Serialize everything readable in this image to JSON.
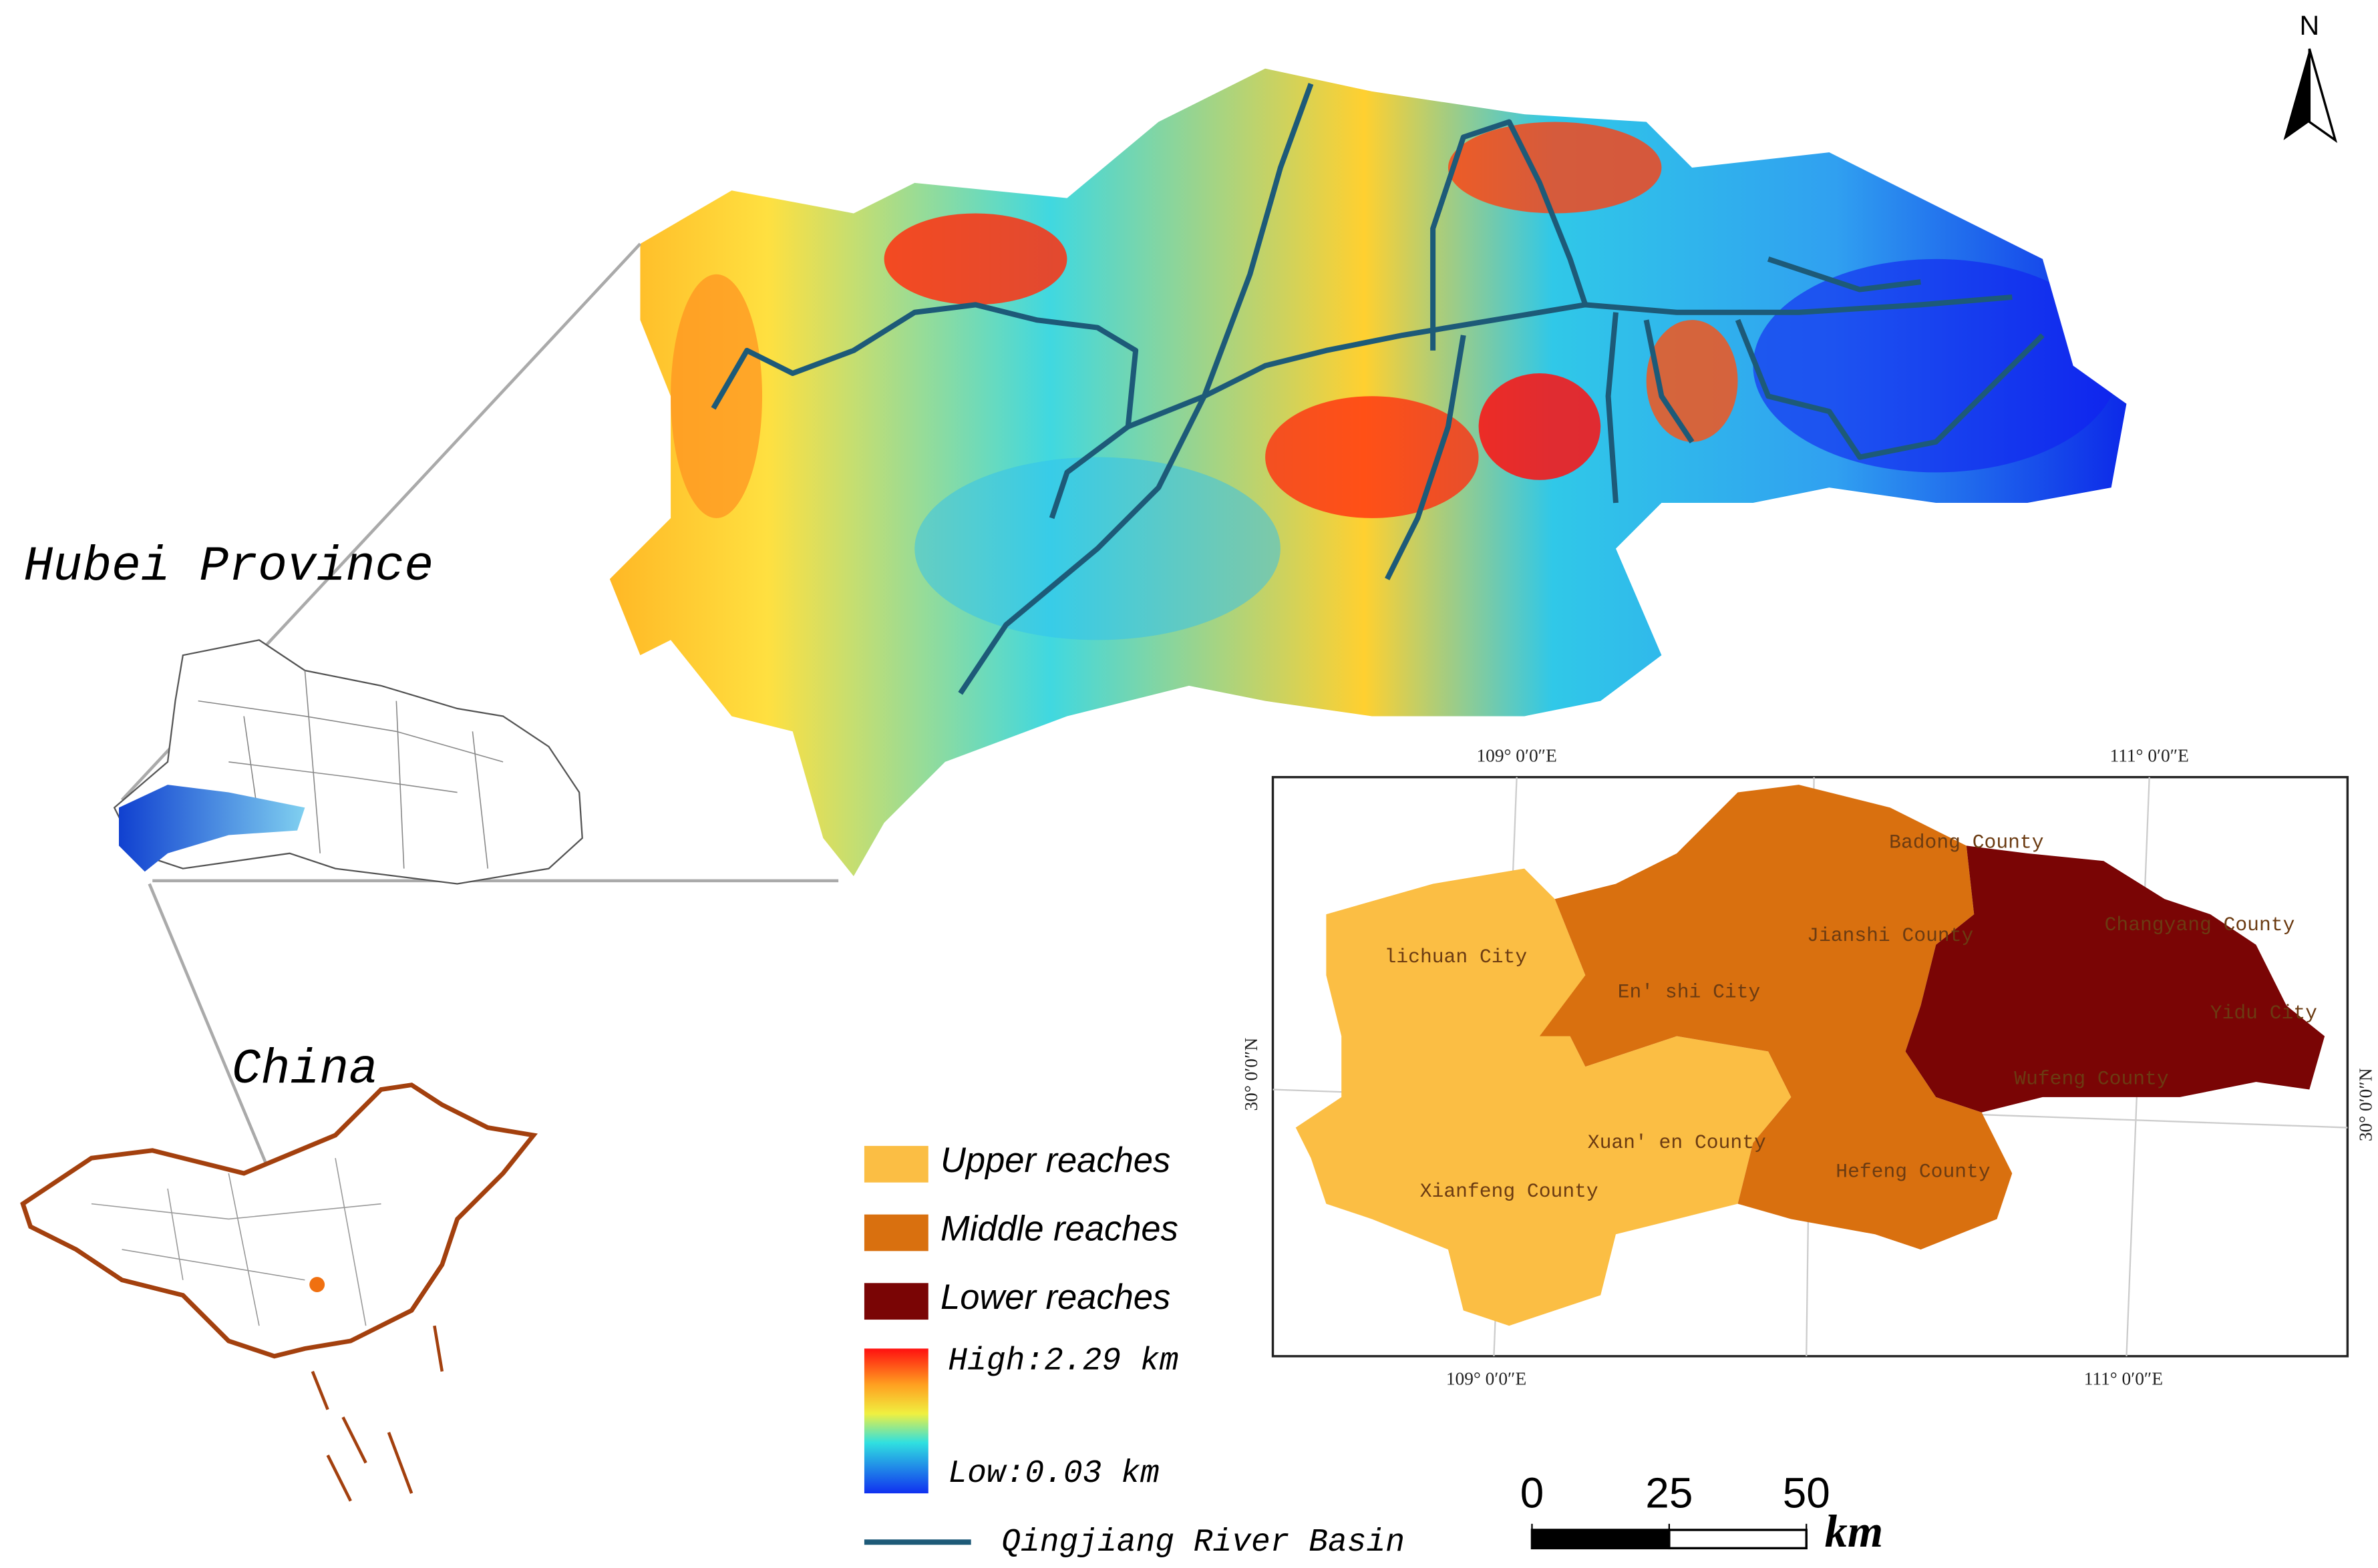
{
  "north_arrow": "N",
  "hubei_label": "Hubei Province",
  "china_label": "China",
  "inset": {
    "top_coords": [
      "109° 0′0″E",
      "111° 0′0″E"
    ],
    "bottom_coords": [
      "109° 0′0″E",
      "111° 0′0″E"
    ],
    "left_coord": "30° 0′0″N",
    "right_coord": "30° 0′0″N",
    "counties": [
      "Badong County",
      "lichuan City",
      "Jianshi County",
      "Changyang County",
      "En' shi City",
      "Yidu City",
      "Wufeng County",
      "Xuan' en County",
      "Hefeng County",
      "Xianfeng County"
    ]
  },
  "legend": {
    "items": [
      {
        "label": "Upper reaches",
        "color": "#fbbe44"
      },
      {
        "label": "Middle reaches",
        "color": "#d9700f"
      },
      {
        "label": "Lower reaches",
        "color": "#7a0505"
      }
    ],
    "high": "High:2.29 km",
    "low": "Low:0.03 km",
    "river": "Qingjiang River Basin",
    "river_color": "#1d5a78"
  },
  "scale_bar": {
    "ticks": [
      0,
      25,
      50
    ],
    "unit": "km"
  }
}
